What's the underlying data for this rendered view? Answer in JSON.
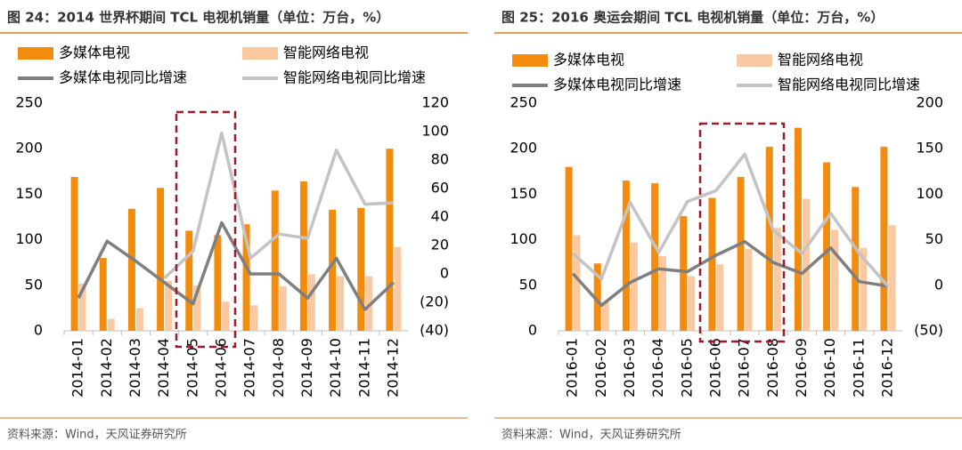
{
  "chart_data": [
    {
      "type": "bar_line",
      "title": "图 24：2014 世界杯期间 TCL 电视机销量（单位：万台，%）",
      "source": "资料来源：Wind，天风证券研究所",
      "categories": [
        "2014-01",
        "2014-02",
        "2014-03",
        "2014-04",
        "2014-05",
        "2014-06",
        "2014-07",
        "2014-08",
        "2014-09",
        "2014-10",
        "2014-11",
        "2014-12"
      ],
      "series": [
        {
          "name": "多媒体电视",
          "type": "bar",
          "color": "#f28c0f",
          "values": [
            169,
            80,
            134,
            157,
            110,
            105,
            117,
            154,
            164,
            133,
            135,
            200
          ]
        },
        {
          "name": "智能网络电视",
          "type": "bar",
          "color": "#fac9a1",
          "values": [
            52,
            13,
            25,
            55,
            50,
            32,
            28,
            49,
            62,
            60,
            60,
            92
          ]
        },
        {
          "name": "多媒体电视同比增速",
          "type": "line",
          "axis": "y2",
          "color": "#7f7f7f",
          "values": [
            -17,
            23,
            9,
            -6,
            -21,
            36,
            0,
            0,
            -17,
            11,
            -25,
            -6
          ]
        },
        {
          "name": "智能网络电视同比增速",
          "type": "line",
          "axis": "y2",
          "color": "#c3c3c3",
          "values": [
            null,
            null,
            null,
            -3,
            16,
            99,
            11,
            28,
            25,
            87,
            49,
            50
          ]
        }
      ],
      "ylim": [
        0,
        250
      ],
      "yticks": [
        0,
        50,
        100,
        150,
        200,
        250
      ],
      "y2lim": [
        -40,
        120
      ],
      "y2ticks": [
        {
          "value": -40,
          "label": "(40)"
        },
        {
          "value": -20,
          "label": "(20)"
        },
        0,
        20,
        40,
        60,
        80,
        100,
        120
      ]
    },
    {
      "type": "bar_line",
      "title": "图 25：2016 奥运会期间 TCL 电视机销量（单位：万台，%）",
      "source": "资料来源：Wind，天风证券研究所",
      "categories": [
        "2016-01",
        "2016-02",
        "2016-03",
        "2016-04",
        "2016-05",
        "2016-06",
        "2016-07",
        "2016-08",
        "2016-09",
        "2016-10",
        "2016-11",
        "2016-12"
      ],
      "series": [
        {
          "name": "多媒体电视",
          "type": "bar",
          "color": "#f28c0f",
          "values": [
            180,
            74,
            165,
            162,
            126,
            146,
            169,
            202,
            223,
            185,
            158,
            202
          ]
        },
        {
          "name": "智能网络电视",
          "type": "bar",
          "color": "#fac9a1",
          "values": [
            105,
            32,
            97,
            82,
            60,
            73,
            90,
            113,
            145,
            111,
            91,
            116
          ]
        },
        {
          "name": "多媒体电视同比增速",
          "type": "line",
          "axis": "y2",
          "color": "#7f7f7f",
          "values": [
            13,
            -22,
            3,
            18,
            15,
            33,
            48,
            25,
            13,
            41,
            4,
            -1
          ]
        },
        {
          "name": "智能网络电视同比增速",
          "type": "line",
          "axis": "y2",
          "color": "#c3c3c3",
          "values": [
            35,
            7,
            91,
            36,
            92,
            104,
            144,
            60,
            35,
            79,
            35,
            -1
          ]
        }
      ],
      "ylim": [
        0,
        250
      ],
      "yticks": [
        0,
        50,
        100,
        150,
        200,
        250
      ],
      "y2lim": [
        -50,
        200
      ],
      "y2ticks": [
        {
          "value": -50,
          "label": "(50)"
        },
        0,
        50,
        100,
        150,
        200
      ]
    }
  ]
}
